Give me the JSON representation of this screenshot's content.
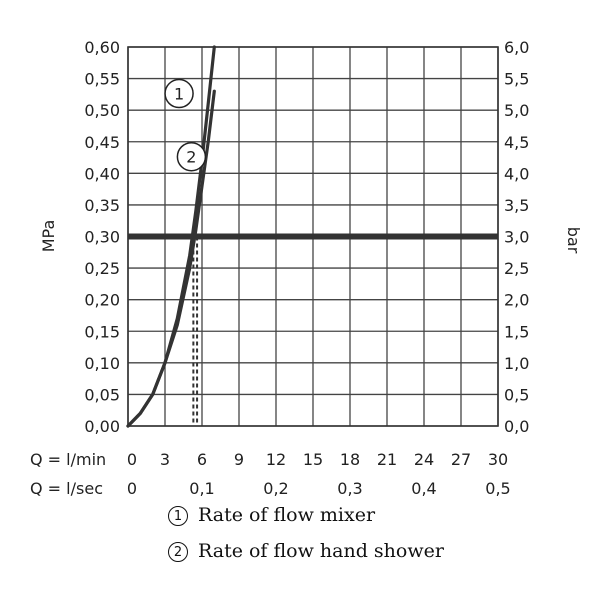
{
  "chart_data": {
    "type": "line",
    "y_axis_left": {
      "label": "MPa",
      "ticks": [
        "0,00",
        "0,05",
        "0,10",
        "0,15",
        "0,20",
        "0,25",
        "0,30",
        "0,35",
        "0,40",
        "0,45",
        "0,50",
        "0,55",
        "0,60"
      ],
      "range": [
        0,
        0.6
      ]
    },
    "y_axis_right": {
      "label": "bar",
      "ticks": [
        "0,0",
        "0,5",
        "1,0",
        "1,5",
        "2,0",
        "2,5",
        "3,0",
        "3,5",
        "4,0",
        "4,5",
        "5,0",
        "5,5",
        "6,0"
      ],
      "range": [
        0,
        6
      ]
    },
    "x_axis_lmin": {
      "label": "Q = l/min",
      "ticks": [
        "0",
        "3",
        "6",
        "9",
        "12",
        "15",
        "18",
        "21",
        "24",
        "27",
        "30"
      ],
      "range": [
        0,
        30
      ]
    },
    "x_axis_lsec": {
      "label": "Q = l/sec",
      "ticks": [
        "0",
        "0,1",
        "0,2",
        "0,3",
        "0,4",
        "0,5"
      ]
    },
    "reference_line": {
      "y": 0.3
    },
    "series": [
      {
        "marker": "1",
        "x": [
          0,
          1,
          2,
          3,
          4,
          5,
          5.5,
          6,
          6.5,
          7
        ],
        "y": [
          0,
          0.02,
          0.05,
          0.1,
          0.17,
          0.27,
          0.34,
          0.42,
          0.51,
          0.6
        ]
      },
      {
        "marker": "2",
        "x": [
          0,
          1,
          2,
          3,
          4,
          5,
          5.5,
          6,
          6.5,
          7
        ],
        "y": [
          0,
          0.02,
          0.05,
          0.1,
          0.16,
          0.25,
          0.31,
          0.38,
          0.45,
          0.53
        ]
      }
    ],
    "dashed_markers_x": [
      5.3,
      5.6
    ],
    "grid": true,
    "legend": [
      {
        "marker": "1",
        "text": "Rate of flow mixer"
      },
      {
        "marker": "2",
        "text": "Rate of flow hand shower"
      }
    ]
  }
}
